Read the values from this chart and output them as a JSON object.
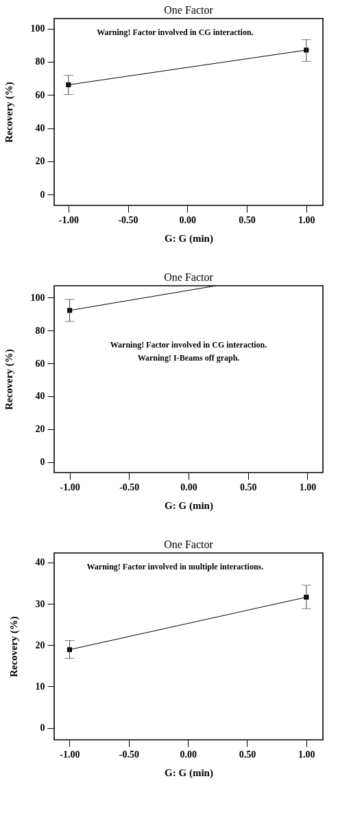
{
  "chart_data": [
    {
      "type": "line",
      "title": "One Factor",
      "xlabel": "G: G (min)",
      "ylabel": "Recovery (%)",
      "xlim": [
        -1.12,
        1.14
      ],
      "ylim": [
        -6.5,
        106
      ],
      "xticks": [
        {
          "value": -1,
          "label": "-1.00"
        },
        {
          "value": -0.5,
          "label": "-0.50"
        },
        {
          "value": 0,
          "label": "0.00"
        },
        {
          "value": 0.5,
          "label": "0.50"
        },
        {
          "value": 1,
          "label": "1.00"
        }
      ],
      "yticks": [
        0,
        20,
        40,
        60,
        80,
        100
      ],
      "grid": false,
      "annotations": [
        "Warning! Factor involved in CG interaction."
      ],
      "series": [
        {
          "color": "#000000",
          "marker": "square",
          "x": [
            -1,
            1
          ],
          "values": [
            66.1,
            87.0
          ],
          "errors": [
            [
              60.3,
              71.8
            ],
            [
              80.2,
              93.3
            ]
          ]
        }
      ]
    },
    {
      "type": "line",
      "title": "One Factor",
      "xlabel": "G: G (min)",
      "ylabel": "Recovery (%)",
      "xlim": [
        -1.13,
        1.13
      ],
      "ylim": [
        -6.4,
        107.2
      ],
      "xticks": [
        {
          "value": -1,
          "label": "-1.00"
        },
        {
          "value": -0.5,
          "label": "-0.50"
        },
        {
          "value": 0,
          "label": "0.00"
        },
        {
          "value": 0.5,
          "label": "0.50"
        },
        {
          "value": 1,
          "label": "1.00"
        }
      ],
      "yticks": [
        0,
        20,
        40,
        60,
        80,
        100
      ],
      "grid": false,
      "annotations": [
        "Warning! Factor involved in CG interaction.",
        "Warning! I-Beams off graph."
      ],
      "series": [
        {
          "type": "scatter",
          "color": "#000000",
          "marker": "square",
          "x": [
            -1
          ],
          "values": [
            92.2
          ],
          "errors": [
            [
              85.5,
              98.9
            ]
          ]
        },
        {
          "type": "line",
          "color": "#000000",
          "marker": "none",
          "x": [
            -1,
            0.23
          ],
          "values": [
            92.2,
            107.2
          ]
        }
      ]
    },
    {
      "type": "line",
      "title": "One Factor",
      "xlabel": "G: G (min)",
      "ylabel": "Recovery (%)",
      "xlim": [
        -1.13,
        1.14
      ],
      "ylim": [
        -2.9,
        42.3
      ],
      "xticks": [
        {
          "value": -1,
          "label": "-1.00"
        },
        {
          "value": -0.5,
          "label": "-0.50"
        },
        {
          "value": 0,
          "label": "0.00"
        },
        {
          "value": 0.5,
          "label": "0.50"
        },
        {
          "value": 1,
          "label": "1.00"
        }
      ],
      "yticks": [
        0,
        10,
        20,
        30,
        40
      ],
      "grid": false,
      "annotations": [
        "Warning! Factor involved in multiple interactions."
      ],
      "series": [
        {
          "color": "#000000",
          "marker": "square",
          "x": [
            -1,
            1
          ],
          "values": [
            18.9,
            31.6
          ],
          "errors": [
            [
              16.8,
              21.1
            ],
            [
              28.8,
              34.5
            ]
          ]
        }
      ]
    }
  ]
}
